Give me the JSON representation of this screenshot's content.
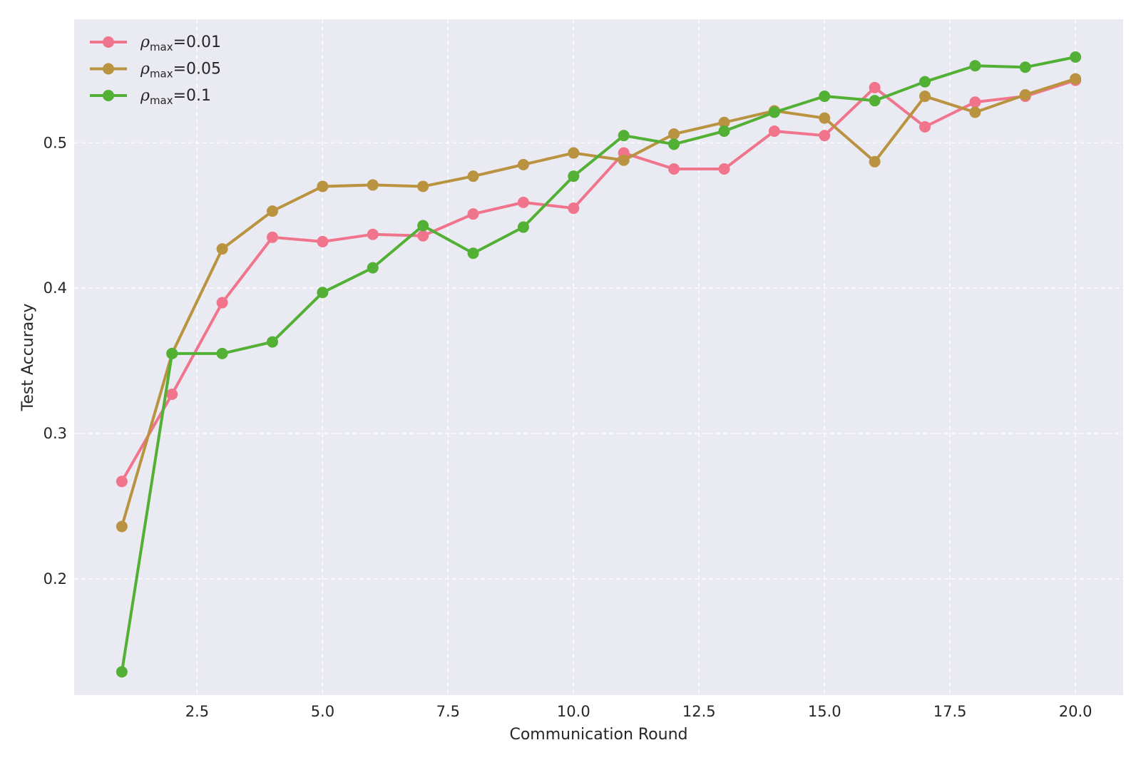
{
  "chart_data": {
    "type": "line",
    "title": "",
    "xlabel": "Communication Round",
    "ylabel": "Test Accuracy",
    "xlim": [
      0.05,
      20.95
    ],
    "ylim": [
      0.12,
      0.585
    ],
    "xticks": [
      2.5,
      5.0,
      7.5,
      10.0,
      12.5,
      15.0,
      17.5,
      20.0
    ],
    "xtick_labels": [
      "2.5",
      "5.0",
      "7.5",
      "10.0",
      "12.5",
      "15.0",
      "17.5",
      "20.0"
    ],
    "yticks": [
      0.2,
      0.3,
      0.4,
      0.5
    ],
    "ytick_labels": [
      "0.2",
      "0.3",
      "0.4",
      "0.5"
    ],
    "grid": true,
    "legend_position": "top-left",
    "colors": {
      "background": "#eaeaf2",
      "grid": "#ffffff"
    },
    "x": [
      1,
      2,
      3,
      4,
      5,
      6,
      7,
      8,
      9,
      10,
      11,
      12,
      13,
      14,
      15,
      16,
      17,
      18,
      19,
      20
    ],
    "series": [
      {
        "name_base": "ρ",
        "name_sub": "max",
        "name_value": "=0.01",
        "color": "#f0758c",
        "values": [
          0.267,
          0.327,
          0.39,
          0.435,
          0.432,
          0.437,
          0.436,
          0.451,
          0.459,
          0.455,
          0.493,
          0.482,
          0.482,
          0.508,
          0.505,
          0.538,
          0.511,
          0.528,
          0.532,
          0.543
        ]
      },
      {
        "name_base": "ρ",
        "name_sub": "max",
        "name_value": "=0.05",
        "color": "#b99340",
        "values": [
          0.236,
          0.355,
          0.427,
          0.453,
          0.47,
          0.471,
          0.47,
          0.477,
          0.485,
          0.493,
          0.488,
          0.506,
          0.514,
          0.522,
          0.517,
          0.487,
          0.532,
          0.521,
          0.533,
          0.544
        ]
      },
      {
        "name_base": "ρ",
        "name_sub": "max",
        "name_value": "=0.1",
        "color": "#52b035",
        "values": [
          0.136,
          0.355,
          0.355,
          0.363,
          0.397,
          0.414,
          0.443,
          0.424,
          0.442,
          0.477,
          0.505,
          0.499,
          0.508,
          0.521,
          0.532,
          0.529,
          0.542,
          0.553,
          0.552,
          0.559
        ]
      }
    ]
  }
}
